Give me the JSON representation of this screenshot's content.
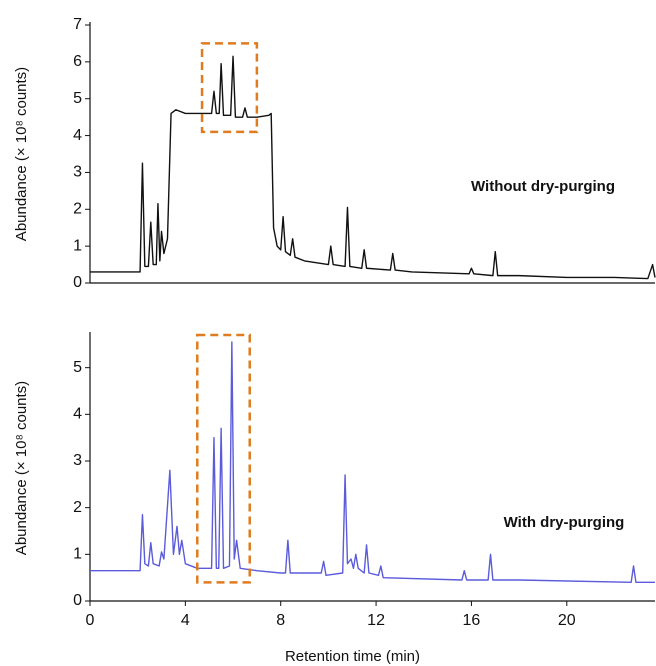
{
  "chart_data": [
    {
      "type": "line",
      "y_label": "Abundance (× 10⁸ counts)",
      "annotation": "Without dry-purging",
      "xlim": [
        0,
        23.7
      ],
      "ylim": [
        0,
        7
      ],
      "yticks": [
        0,
        1,
        2,
        3,
        4,
        5,
        6,
        7
      ],
      "highlight": {
        "xlim": [
          4.7,
          7.0
        ],
        "ylim": [
          4.1,
          6.5
        ],
        "color": "#e07b20"
      },
      "series": [
        {
          "color": "#111111",
          "x": [
            0,
            2.1,
            2.2,
            2.3,
            2.45,
            2.55,
            2.65,
            2.78,
            2.85,
            2.93,
            3.0,
            3.1,
            3.25,
            3.4,
            3.6,
            4.0,
            4.5,
            5.1,
            5.2,
            5.3,
            5.42,
            5.5,
            5.6,
            5.9,
            6.0,
            6.1,
            6.4,
            6.5,
            6.6,
            7.0,
            7.5,
            7.6,
            7.7,
            7.85,
            8.0,
            8.1,
            8.2,
            8.4,
            8.5,
            8.6,
            9.0,
            10.0,
            10.1,
            10.2,
            10.7,
            10.8,
            10.9,
            11.4,
            11.5,
            11.6,
            12.6,
            12.7,
            12.8,
            13.5,
            15.9,
            16.0,
            16.1,
            16.9,
            17.0,
            17.1,
            18.0,
            20.0,
            22.0,
            23.4,
            23.6,
            23.7
          ],
          "values": [
            0.3,
            0.3,
            3.25,
            0.45,
            0.45,
            1.65,
            0.5,
            0.5,
            2.15,
            0.6,
            1.4,
            0.8,
            1.2,
            4.6,
            4.7,
            4.6,
            4.6,
            4.6,
            5.2,
            4.6,
            4.6,
            5.95,
            4.55,
            4.55,
            6.15,
            4.5,
            4.5,
            4.75,
            4.5,
            4.5,
            4.55,
            4.6,
            1.5,
            1.0,
            0.9,
            1.8,
            0.85,
            0.75,
            1.2,
            0.7,
            0.6,
            0.5,
            1.0,
            0.5,
            0.45,
            2.05,
            0.45,
            0.4,
            0.9,
            0.4,
            0.35,
            0.8,
            0.35,
            0.3,
            0.25,
            0.4,
            0.25,
            0.2,
            0.85,
            0.2,
            0.2,
            0.15,
            0.15,
            0.12,
            0.5,
            0.15
          ]
        }
      ]
    },
    {
      "type": "line",
      "y_label": "Abundance (× 10⁸ counts)",
      "x_label": "Retention time (min)",
      "annotation": "With dry-purging",
      "xlim": [
        0,
        23.7
      ],
      "xticks": [
        0,
        4,
        8,
        12,
        16,
        20
      ],
      "ylim": [
        0,
        5.7
      ],
      "yticks": [
        0,
        1,
        2,
        3,
        4,
        5
      ],
      "highlight": {
        "xlim": [
          4.5,
          6.7
        ],
        "ylim": [
          0.4,
          5.7
        ],
        "color": "#e07b20"
      },
      "series": [
        {
          "color": "#5b5bdc",
          "x": [
            0,
            2.1,
            2.2,
            2.3,
            2.45,
            2.55,
            2.65,
            2.9,
            3.0,
            3.1,
            3.35,
            3.5,
            3.65,
            3.75,
            3.85,
            4.0,
            4.5,
            5.1,
            5.2,
            5.3,
            5.4,
            5.5,
            5.6,
            5.85,
            5.95,
            6.05,
            6.15,
            6.3,
            7.0,
            8.0,
            8.2,
            8.3,
            8.4,
            9.7,
            9.8,
            9.9,
            10.6,
            10.7,
            10.8,
            10.95,
            11.05,
            11.15,
            11.25,
            11.5,
            11.6,
            11.7,
            12.1,
            12.2,
            12.3,
            15.6,
            15.7,
            15.8,
            16.7,
            16.8,
            16.9,
            18.0,
            22.7,
            22.8,
            22.9,
            23.7
          ],
          "values": [
            0.65,
            0.65,
            1.85,
            0.8,
            0.75,
            1.25,
            0.8,
            0.75,
            1.05,
            0.9,
            2.8,
            1.0,
            1.6,
            1.0,
            1.3,
            0.8,
            0.7,
            0.7,
            3.5,
            0.7,
            0.7,
            3.7,
            0.7,
            0.75,
            5.55,
            0.9,
            1.3,
            0.7,
            0.65,
            0.6,
            0.6,
            1.3,
            0.6,
            0.6,
            0.85,
            0.55,
            0.6,
            2.7,
            0.8,
            0.9,
            0.7,
            1.0,
            0.7,
            0.6,
            1.2,
            0.6,
            0.55,
            0.75,
            0.5,
            0.45,
            0.65,
            0.45,
            0.45,
            1.0,
            0.45,
            0.45,
            0.4,
            0.75,
            0.4,
            0.4
          ]
        }
      ]
    }
  ]
}
